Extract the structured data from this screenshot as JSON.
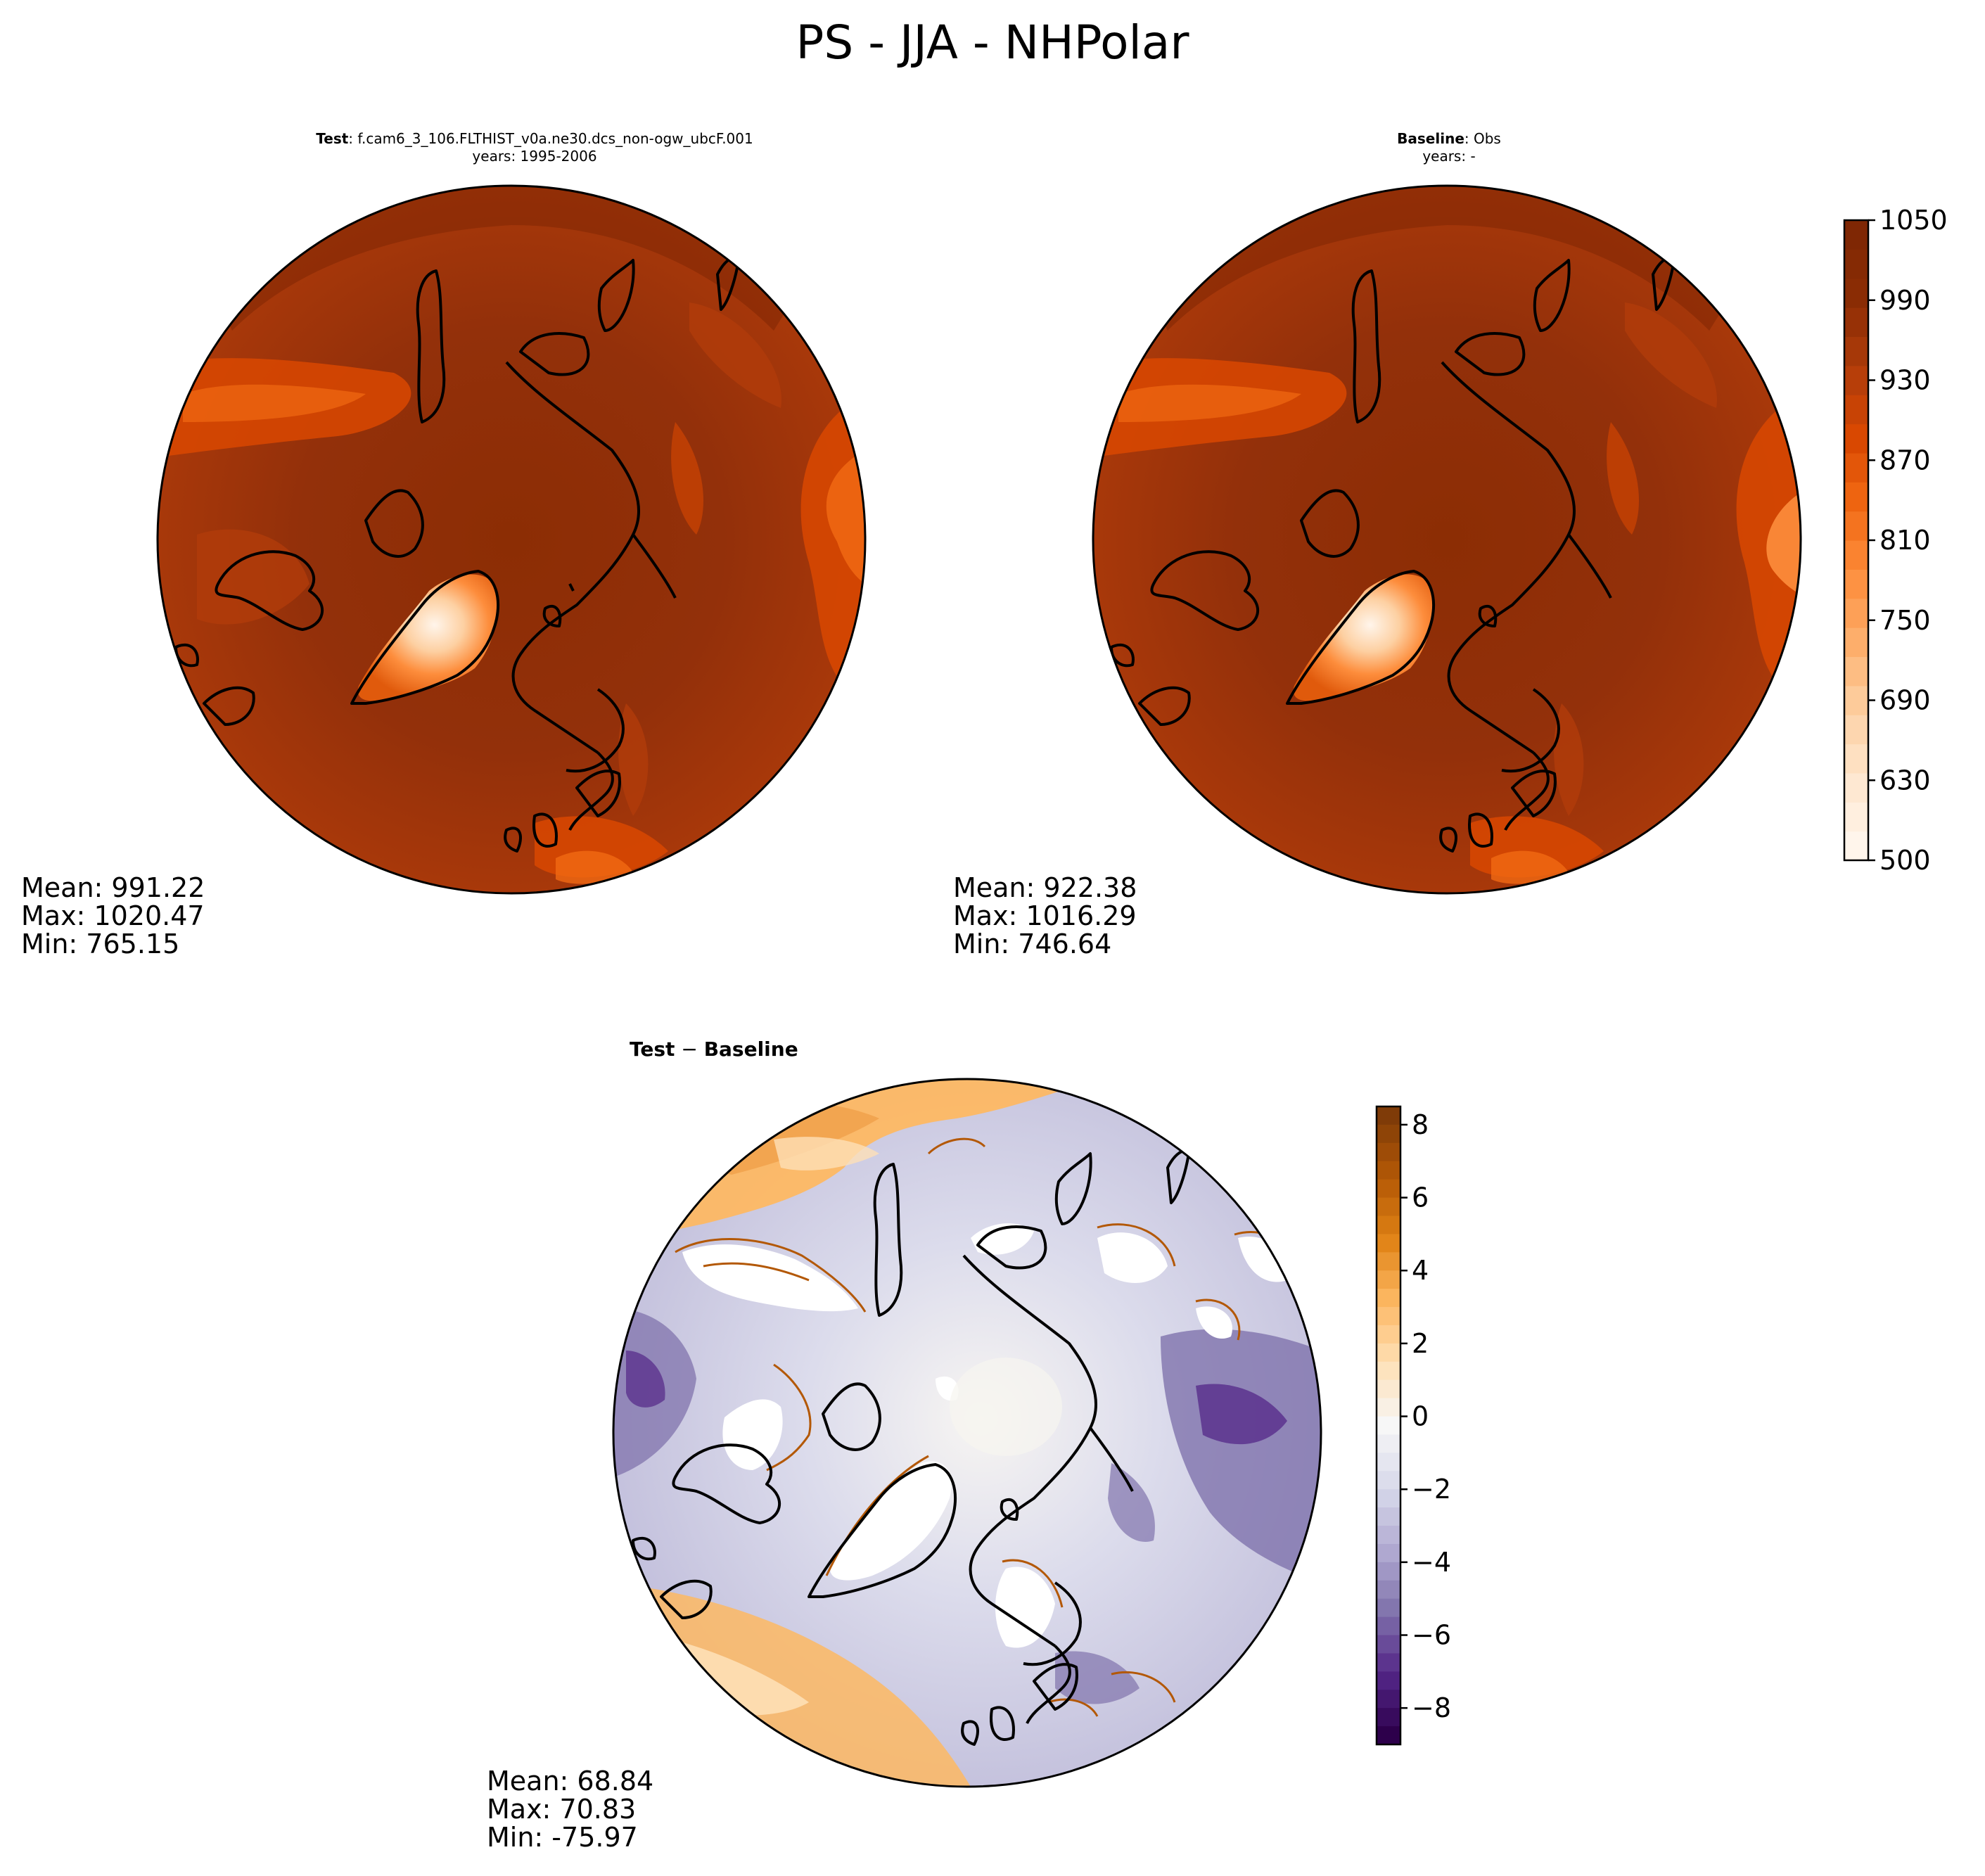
{
  "figure": {
    "title": "PS - JJA - NHPolar"
  },
  "panels": {
    "test": {
      "label_bold": "Test",
      "label_rest": ": f.cam6_3_106.FLTHIST_v0a.ne30.dcs_non-ogw_ubcF.001",
      "subtitle": "years: 1995-2006",
      "stats": {
        "mean": "Mean: 991.22",
        "max": "Max: 1020.47",
        "min": "Min: 765.15"
      }
    },
    "baseline": {
      "label_bold": "Baseline",
      "label_rest": ": Obs",
      "subtitle": "years: -",
      "stats": {
        "mean": "Mean: 922.38",
        "max": "Max: 1016.29",
        "min": "Min: 746.64"
      }
    },
    "diff": {
      "label_bold_a": "Test",
      "label_sep": " − ",
      "label_bold_b": "Baseline",
      "stats": {
        "mean": "Mean: 68.84",
        "max": "Max: 70.83",
        "min": "Min: -75.97"
      }
    }
  },
  "colorbars": {
    "main": {
      "colormap": "Oranges",
      "ticks": [
        "500",
        "630",
        "690",
        "750",
        "810",
        "870",
        "930",
        "990",
        "1050"
      ],
      "colors": [
        "#fff5eb",
        "#fee6ce",
        "#fdd0a2",
        "#fdae6b",
        "#fd8d3c",
        "#f16913",
        "#d94801",
        "#b13c0a",
        "#8c2d04",
        "#7f2704"
      ]
    },
    "diff": {
      "colormap": "PuOr_r",
      "ticks": [
        "8",
        "6",
        "4",
        "2",
        "0",
        "−2",
        "−4",
        "−6",
        "−8"
      ],
      "tick_values": [
        8,
        6,
        4,
        2,
        0,
        -2,
        -4,
        -6,
        -8
      ],
      "range": [
        -9,
        8.5
      ],
      "colors_top_to_bottom": [
        "#7f3b08",
        "#b35806",
        "#e08214",
        "#fdb863",
        "#fee0b6",
        "#f7f7f7",
        "#d8daeb",
        "#b2abd2",
        "#8073ac",
        "#542788",
        "#2d004b"
      ]
    }
  },
  "chart_data": [
    {
      "type": "heatmap",
      "panel": "test",
      "projection": "north polar stereographic",
      "variable": "PS",
      "season": "JJA",
      "region": "NHPolar",
      "stats": {
        "mean": 991.22,
        "max": 1020.47,
        "min": 765.15
      },
      "color_levels": [
        500,
        630,
        650,
        670,
        690,
        710,
        730,
        750,
        770,
        790,
        810,
        830,
        850,
        870,
        890,
        910,
        930,
        950,
        970,
        990,
        1010,
        1030,
        1050
      ]
    },
    {
      "type": "heatmap",
      "panel": "baseline",
      "projection": "north polar stereographic",
      "variable": "PS",
      "season": "JJA",
      "region": "NHPolar",
      "stats": {
        "mean": 922.38,
        "max": 1016.29,
        "min": 746.64
      },
      "color_levels": [
        500,
        630,
        650,
        670,
        690,
        710,
        730,
        750,
        770,
        790,
        810,
        830,
        850,
        870,
        890,
        910,
        930,
        950,
        970,
        990,
        1010,
        1030,
        1050
      ]
    },
    {
      "type": "heatmap",
      "panel": "diff",
      "projection": "north polar stereographic",
      "stats": {
        "mean": 68.84,
        "max": 70.83,
        "min": -75.97
      },
      "color_range": [
        -9,
        8.5
      ]
    }
  ]
}
